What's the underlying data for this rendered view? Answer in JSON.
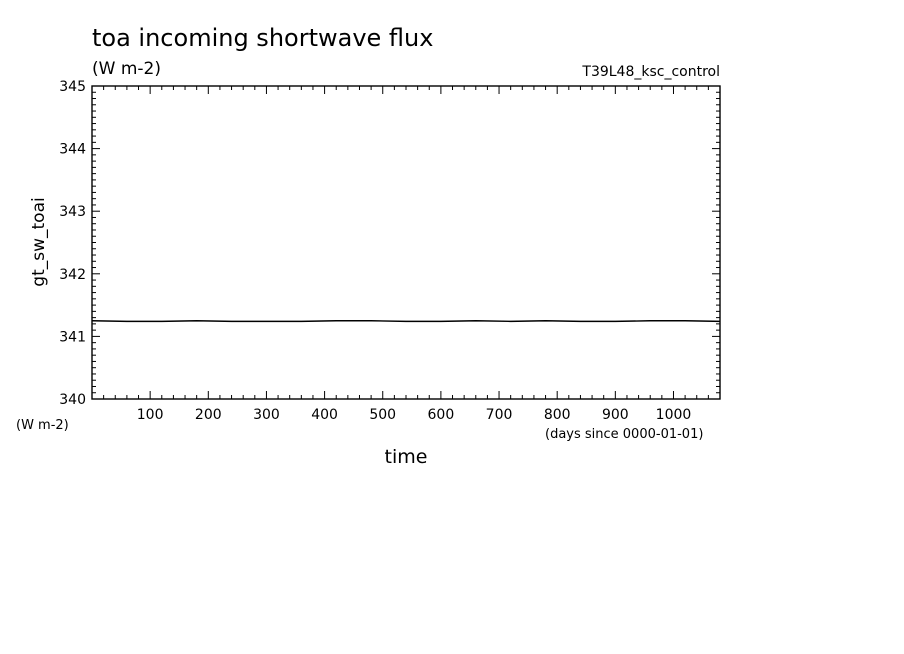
{
  "chart_data": {
    "type": "line",
    "title": "toa incoming shortwave flux",
    "title_units": "(W m-2)",
    "run_label": "T39L48_ksc_control",
    "ylabel": "gt_sw_toai",
    "ylabel_units": "(W m-2)",
    "xlabel": "time",
    "xlabel_units": "(days since 0000-01-01)",
    "xlim": [
      0,
      1080
    ],
    "ylim": [
      340,
      345
    ],
    "xticks": [
      100,
      200,
      300,
      400,
      500,
      600,
      700,
      800,
      900,
      1000
    ],
    "yticks": [
      340,
      341,
      342,
      343,
      344,
      345
    ],
    "grid": false,
    "series": [
      {
        "x": [
          0,
          60,
          120,
          180,
          240,
          300,
          360,
          420,
          480,
          540,
          600,
          660,
          720,
          780,
          840,
          900,
          960,
          1020,
          1080
        ],
        "y": [
          341.25,
          341.24,
          341.24,
          341.25,
          341.24,
          341.24,
          341.24,
          341.25,
          341.25,
          341.24,
          341.24,
          341.25,
          341.24,
          341.25,
          341.24,
          341.24,
          341.25,
          341.25,
          341.24
        ],
        "color": "#000000"
      }
    ]
  }
}
